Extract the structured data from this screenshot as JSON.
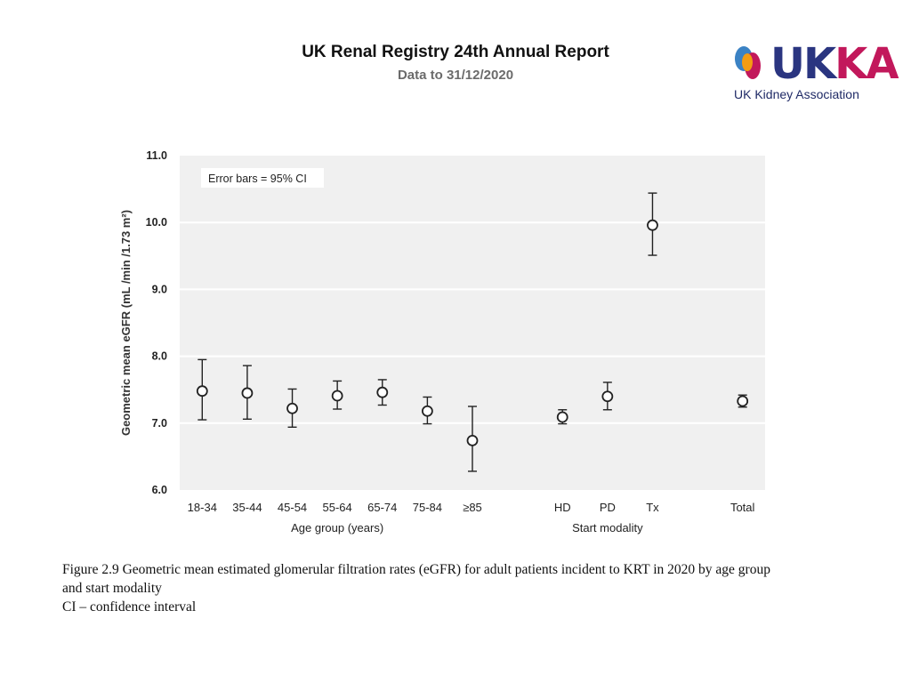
{
  "header": {
    "title": "UK Renal Registry 24th Annual Report",
    "subtitle": "Data to 31/12/2020"
  },
  "logo": {
    "wordmark_u": "UK",
    "wordmark_ka": "KA",
    "subtext": "UK Kidney Association",
    "colors": {
      "navy": "#2a3580",
      "magenta": "#c2185b",
      "orange": "#f39c12",
      "blue": "#3b82c4"
    }
  },
  "chart_data": {
    "type": "scatter",
    "title": "",
    "ylabel": "Geometric mean eGFR (mL /min /1.73 m²)",
    "ylim": [
      6.0,
      11.0
    ],
    "yticks": [
      "6.0",
      "7.0",
      "8.0",
      "9.0",
      "10.0",
      "11.0"
    ],
    "grid": true,
    "annotation": "Error bars = 95% CI",
    "groups": [
      {
        "label": "Age group (years)",
        "categories": [
          "18-34",
          "35-44",
          "45-54",
          "55-64",
          "65-74",
          "75-84",
          "≥85"
        ]
      },
      {
        "label": "Start modality",
        "categories": [
          "HD",
          "PD",
          "Tx"
        ]
      }
    ],
    "points": [
      {
        "category": "18-34",
        "value": 7.48,
        "ci_low": 7.05,
        "ci_high": 7.95
      },
      {
        "category": "35-44",
        "value": 7.45,
        "ci_low": 7.06,
        "ci_high": 7.86
      },
      {
        "category": "45-54",
        "value": 7.22,
        "ci_low": 6.94,
        "ci_high": 7.51
      },
      {
        "category": "55-64",
        "value": 7.41,
        "ci_low": 7.21,
        "ci_high": 7.63
      },
      {
        "category": "65-74",
        "value": 7.46,
        "ci_low": 7.27,
        "ci_high": 7.65
      },
      {
        "category": "75-84",
        "value": 7.18,
        "ci_low": 6.99,
        "ci_high": 7.39
      },
      {
        "category": "≥85",
        "value": 6.74,
        "ci_low": 6.28,
        "ci_high": 7.25
      },
      {
        "category": "HD",
        "value": 7.09,
        "ci_low": 6.99,
        "ci_high": 7.2
      },
      {
        "category": "PD",
        "value": 7.4,
        "ci_low": 7.2,
        "ci_high": 7.61
      },
      {
        "category": "Tx",
        "value": 9.96,
        "ci_low": 9.51,
        "ci_high": 10.44
      },
      {
        "category": "Total",
        "value": 7.33,
        "ci_low": 7.24,
        "ci_high": 7.42
      }
    ],
    "x_slots": [
      "18-34",
      "35-44",
      "45-54",
      "55-64",
      "65-74",
      "75-84",
      "≥85",
      "",
      "HD",
      "PD",
      "Tx",
      "",
      "Total"
    ],
    "colors": {
      "plot_bg": "#f0f0f0",
      "grid": "#ffffff",
      "marker_edge": "#222222",
      "marker_fill": "#ffffff"
    }
  },
  "caption": {
    "line1": "Figure 2.9 Geometric mean estimated glomerular filtration rates (eGFR) for adult patients incident to KRT in 2020 by age group",
    "line2": "and start modality",
    "line3": "CI – confidence interval"
  }
}
